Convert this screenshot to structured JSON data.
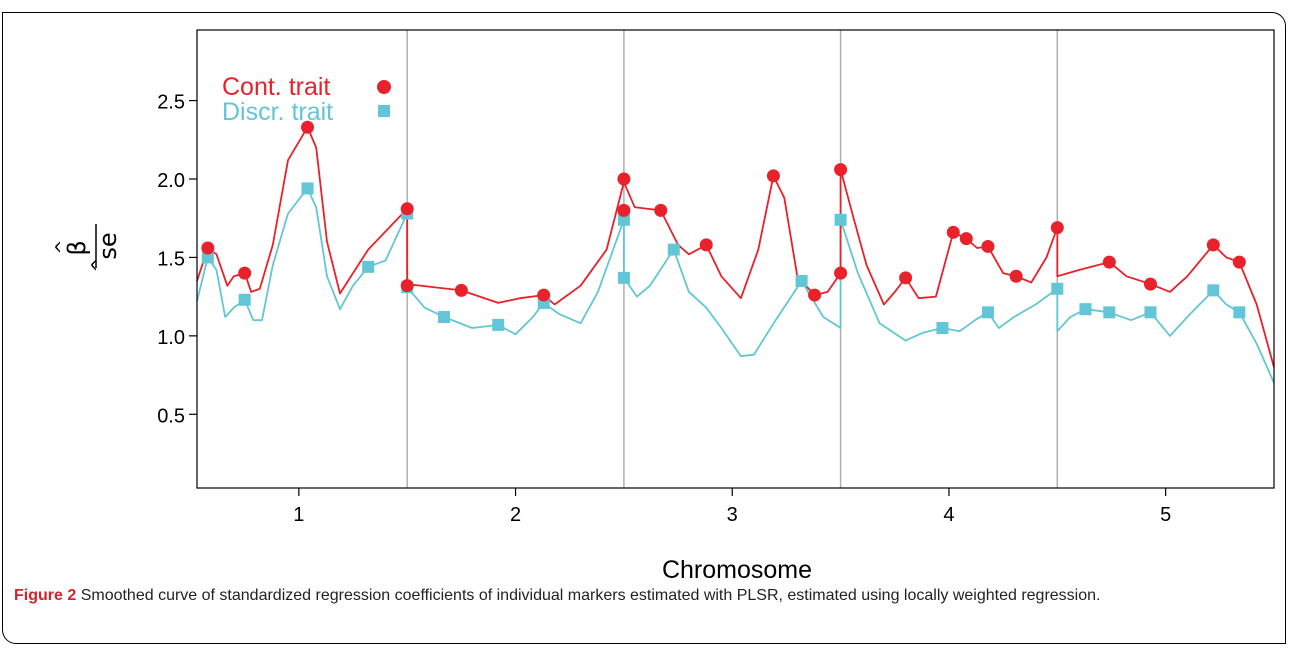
{
  "figure": {
    "label": "Figure 2",
    "caption": "Smoothed curve of standardized regression coefficients of individual markers estimated with PLSR, estimated using locally weighted regression."
  },
  "colors": {
    "cont": "#e8212a",
    "discr": "#62c6d6",
    "axis": "#000000",
    "divider": "#b0b0b0"
  },
  "chart_data": {
    "type": "scatter",
    "xlabel": "Chromosome",
    "ylabel_top": "β",
    "ylabel_hat": "^",
    "ylabel_bottom": "se",
    "xlim": [
      0.53,
      5.5
    ],
    "ylim": [
      0.03,
      2.95
    ],
    "yticks": [
      0.5,
      1.0,
      1.5,
      2.0,
      2.5
    ],
    "ytick_labels": [
      "0.5",
      "1.0",
      "1.5",
      "2.0",
      "2.5"
    ],
    "xticks": [
      1,
      2,
      3,
      4,
      5
    ],
    "xtick_labels": [
      "1",
      "2",
      "3",
      "4",
      "5"
    ],
    "chromosome_boundaries": [
      1.5,
      2.5,
      3.5,
      4.5
    ],
    "legend_position": "top-left",
    "series": [
      {
        "name": "Cont. trait",
        "marker": "circle",
        "points": [
          [
            0.58,
            1.56
          ],
          [
            0.75,
            1.4
          ],
          [
            1.04,
            2.33
          ],
          [
            1.5,
            1.81
          ],
          [
            1.5,
            1.32
          ],
          [
            1.75,
            1.29
          ],
          [
            2.13,
            1.26
          ],
          [
            2.5,
            2.0
          ],
          [
            2.5,
            1.8
          ],
          [
            2.67,
            1.8
          ],
          [
            2.88,
            1.58
          ],
          [
            3.19,
            2.02
          ],
          [
            3.38,
            1.26
          ],
          [
            3.5,
            2.06
          ],
          [
            3.5,
            1.4
          ],
          [
            3.8,
            1.37
          ],
          [
            4.02,
            1.66
          ],
          [
            4.08,
            1.62
          ],
          [
            4.18,
            1.57
          ],
          [
            4.31,
            1.38
          ],
          [
            4.5,
            1.69
          ],
          [
            4.74,
            1.47
          ],
          [
            4.93,
            1.33
          ],
          [
            5.22,
            1.58
          ],
          [
            5.34,
            1.47
          ]
        ],
        "curve": [
          [
            0.53,
            1.35
          ],
          [
            0.58,
            1.56
          ],
          [
            0.62,
            1.52
          ],
          [
            0.67,
            1.32
          ],
          [
            0.7,
            1.38
          ],
          [
            0.75,
            1.4
          ],
          [
            0.78,
            1.28
          ],
          [
            0.82,
            1.3
          ],
          [
            0.88,
            1.58
          ],
          [
            0.95,
            2.12
          ],
          [
            1.04,
            2.33
          ],
          [
            1.08,
            2.2
          ],
          [
            1.13,
            1.6
          ],
          [
            1.19,
            1.27
          ],
          [
            1.25,
            1.4
          ],
          [
            1.32,
            1.55
          ],
          [
            1.5,
            1.81
          ],
          [
            1.5,
            1.33
          ],
          [
            1.75,
            1.29
          ],
          [
            1.92,
            1.21
          ],
          [
            2.02,
            1.24
          ],
          [
            2.13,
            1.26
          ],
          [
            2.18,
            1.2
          ],
          [
            2.3,
            1.32
          ],
          [
            2.42,
            1.55
          ],
          [
            2.5,
            1.98
          ],
          [
            2.55,
            1.82
          ],
          [
            2.67,
            1.8
          ],
          [
            2.75,
            1.58
          ],
          [
            2.8,
            1.52
          ],
          [
            2.88,
            1.58
          ],
          [
            2.95,
            1.38
          ],
          [
            3.04,
            1.24
          ],
          [
            3.12,
            1.55
          ],
          [
            3.19,
            2.02
          ],
          [
            3.24,
            1.88
          ],
          [
            3.3,
            1.38
          ],
          [
            3.38,
            1.26
          ],
          [
            3.44,
            1.28
          ],
          [
            3.5,
            1.4
          ],
          [
            3.5,
            2.06
          ],
          [
            3.56,
            1.75
          ],
          [
            3.62,
            1.45
          ],
          [
            3.7,
            1.2
          ],
          [
            3.75,
            1.28
          ],
          [
            3.8,
            1.37
          ],
          [
            3.86,
            1.24
          ],
          [
            3.94,
            1.25
          ],
          [
            4.02,
            1.66
          ],
          [
            4.08,
            1.62
          ],
          [
            4.13,
            1.56
          ],
          [
            4.18,
            1.57
          ],
          [
            4.25,
            1.4
          ],
          [
            4.31,
            1.38
          ],
          [
            4.38,
            1.34
          ],
          [
            4.45,
            1.5
          ],
          [
            4.5,
            1.69
          ],
          [
            4.5,
            1.38
          ],
          [
            4.6,
            1.42
          ],
          [
            4.74,
            1.47
          ],
          [
            4.82,
            1.38
          ],
          [
            4.93,
            1.33
          ],
          [
            5.02,
            1.28
          ],
          [
            5.1,
            1.38
          ],
          [
            5.22,
            1.58
          ],
          [
            5.28,
            1.5
          ],
          [
            5.34,
            1.47
          ],
          [
            5.42,
            1.2
          ],
          [
            5.5,
            0.8
          ]
        ]
      },
      {
        "name": "Discr. trait",
        "marker": "square",
        "points": [
          [
            0.58,
            1.5
          ],
          [
            0.75,
            1.23
          ],
          [
            1.04,
            1.94
          ],
          [
            1.32,
            1.44
          ],
          [
            1.5,
            1.78
          ],
          [
            1.5,
            1.31
          ],
          [
            1.67,
            1.12
          ],
          [
            1.92,
            1.07
          ],
          [
            2.13,
            1.21
          ],
          [
            2.5,
            1.74
          ],
          [
            2.5,
            1.37
          ],
          [
            2.73,
            1.55
          ],
          [
            3.32,
            1.35
          ],
          [
            3.5,
            1.74
          ],
          [
            3.97,
            1.05
          ],
          [
            4.18,
            1.15
          ],
          [
            4.5,
            1.3
          ],
          [
            4.63,
            1.17
          ],
          [
            4.74,
            1.15
          ],
          [
            4.93,
            1.15
          ],
          [
            5.22,
            1.29
          ],
          [
            5.34,
            1.15
          ]
        ],
        "curve": [
          [
            0.53,
            1.22
          ],
          [
            0.58,
            1.5
          ],
          [
            0.62,
            1.42
          ],
          [
            0.66,
            1.12
          ],
          [
            0.7,
            1.18
          ],
          [
            0.75,
            1.23
          ],
          [
            0.79,
            1.1
          ],
          [
            0.83,
            1.1
          ],
          [
            0.88,
            1.45
          ],
          [
            0.95,
            1.78
          ],
          [
            1.04,
            1.94
          ],
          [
            1.08,
            1.82
          ],
          [
            1.13,
            1.38
          ],
          [
            1.19,
            1.17
          ],
          [
            1.25,
            1.32
          ],
          [
            1.32,
            1.44
          ],
          [
            1.4,
            1.48
          ],
          [
            1.5,
            1.78
          ],
          [
            1.5,
            1.31
          ],
          [
            1.58,
            1.18
          ],
          [
            1.67,
            1.12
          ],
          [
            1.8,
            1.05
          ],
          [
            1.92,
            1.07
          ],
          [
            2.0,
            1.01
          ],
          [
            2.08,
            1.12
          ],
          [
            2.13,
            1.21
          ],
          [
            2.2,
            1.14
          ],
          [
            2.3,
            1.08
          ],
          [
            2.38,
            1.28
          ],
          [
            2.5,
            1.74
          ],
          [
            2.5,
            1.37
          ],
          [
            2.56,
            1.25
          ],
          [
            2.62,
            1.32
          ],
          [
            2.73,
            1.55
          ],
          [
            2.8,
            1.28
          ],
          [
            2.88,
            1.18
          ],
          [
            2.95,
            1.05
          ],
          [
            3.04,
            0.87
          ],
          [
            3.1,
            0.88
          ],
          [
            3.2,
            1.1
          ],
          [
            3.32,
            1.35
          ],
          [
            3.42,
            1.12
          ],
          [
            3.5,
            1.05
          ],
          [
            3.5,
            1.74
          ],
          [
            3.58,
            1.4
          ],
          [
            3.68,
            1.08
          ],
          [
            3.8,
            0.97
          ],
          [
            3.88,
            1.02
          ],
          [
            3.97,
            1.05
          ],
          [
            4.05,
            1.03
          ],
          [
            4.12,
            1.1
          ],
          [
            4.18,
            1.15
          ],
          [
            4.23,
            1.05
          ],
          [
            4.3,
            1.12
          ],
          [
            4.4,
            1.2
          ],
          [
            4.5,
            1.3
          ],
          [
            4.5,
            1.03
          ],
          [
            4.56,
            1.12
          ],
          [
            4.63,
            1.17
          ],
          [
            4.74,
            1.15
          ],
          [
            4.84,
            1.1
          ],
          [
            4.93,
            1.15
          ],
          [
            5.02,
            1.0
          ],
          [
            5.1,
            1.12
          ],
          [
            5.22,
            1.29
          ],
          [
            5.28,
            1.2
          ],
          [
            5.34,
            1.15
          ],
          [
            5.42,
            0.95
          ],
          [
            5.5,
            0.7
          ]
        ]
      }
    ]
  }
}
